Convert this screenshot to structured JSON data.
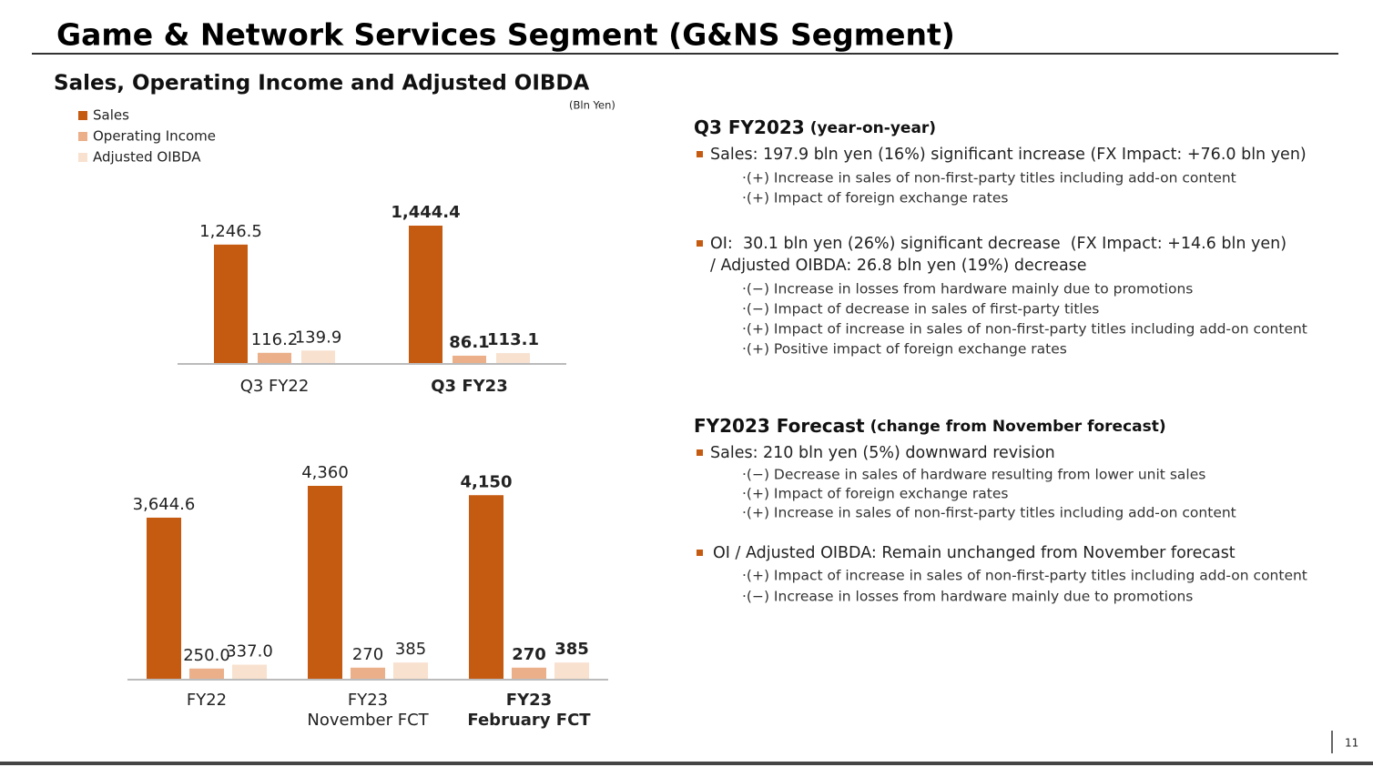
{
  "header": {
    "title": "Game & Network Services Segment (G&NS Segment)",
    "subtitle": "Sales, Operating Income and Adjusted OIBDA"
  },
  "chart_data": [
    {
      "type": "bar",
      "unit_note": "(Bln Yen)",
      "categories": [
        "Q3 FY22",
        "Q3 FY23"
      ],
      "bold": [
        false,
        true
      ],
      "series": [
        {
          "name": "Sales",
          "color": "#c55a11",
          "values": [
            1246.5,
            1444.4
          ],
          "value_labels": [
            "1,246.5",
            "1,444.4"
          ]
        },
        {
          "name": "Operating Income",
          "color": "#ebb08a",
          "values": [
            116.2,
            86.1
          ]
        },
        {
          "name": "Adjusted OIBDA",
          "color": "#f8e1cf",
          "values": [
            139.9,
            113.1
          ]
        }
      ]
    },
    {
      "type": "bar",
      "categories": [
        [
          "FY22"
        ],
        [
          "FY23",
          "November FCT"
        ],
        [
          "FY23",
          "February FCT"
        ]
      ],
      "bold": [
        false,
        false,
        true
      ],
      "series": [
        {
          "color": "#c55a11",
          "values": [
            3644.6,
            4360,
            4150
          ],
          "value_labels": [
            "3,644.6",
            "4,360",
            "4,150"
          ]
        },
        {
          "color": "#ebb08a",
          "values": [
            250.0,
            270,
            270
          ],
          "value_labels": [
            "250.0",
            "270",
            "270"
          ]
        },
        {
          "color": "#f8e1cf",
          "values": [
            337.0,
            385,
            385
          ],
          "value_labels": [
            "337.0",
            "385",
            "385"
          ]
        }
      ]
    }
  ],
  "commentary": [
    {
      "heading": "Q3 FY2023",
      "note": "(year-on-year)",
      "items": [
        {
          "lines": [
            "Sales: 197.9 bln yen (16%) significant increase (FX Impact: +76.0 bln yen)"
          ],
          "sub": [
            "·(+) Increase in sales of non-first-party titles including add-on content",
            "·(+) Impact of foreign exchange rates"
          ]
        },
        {
          "lines": [
            "OI:  30.1 bln yen (26%) significant decrease  (FX Impact: +14.6 bln yen)",
            "/ Adjusted OIBDA: 26.8 bln yen (19%) decrease"
          ],
          "sub": [
            "·(−) Increase in losses from hardware mainly due to promotions",
            "·(−) Impact of decrease in sales of first-party titles",
            "·(+) Impact of increase in sales of non-first-party titles including add-on content",
            "·(+) Positive impact of foreign exchange rates"
          ]
        }
      ]
    },
    {
      "heading": "FY2023 Forecast",
      "note": "(change from November forecast)",
      "items": [
        {
          "lines": [
            "Sales: 210 bln yen (5%) downward revision"
          ],
          "sub": [
            "·(−) Decrease in sales of hardware resulting from lower unit sales",
            "·(+) Impact of foreign exchange rates",
            "·(+) Increase in sales of non-first-party titles including add-on content"
          ]
        },
        {
          "lines": [
            "OI / Adjusted OIBDA: Remain unchanged from November forecast"
          ],
          "sub": [
            "·(+) Impact of increase in sales of non-first-party titles including add-on content",
            "·(−) Increase in losses from hardware mainly due to promotions"
          ]
        }
      ]
    }
  ],
  "page_number": "11"
}
